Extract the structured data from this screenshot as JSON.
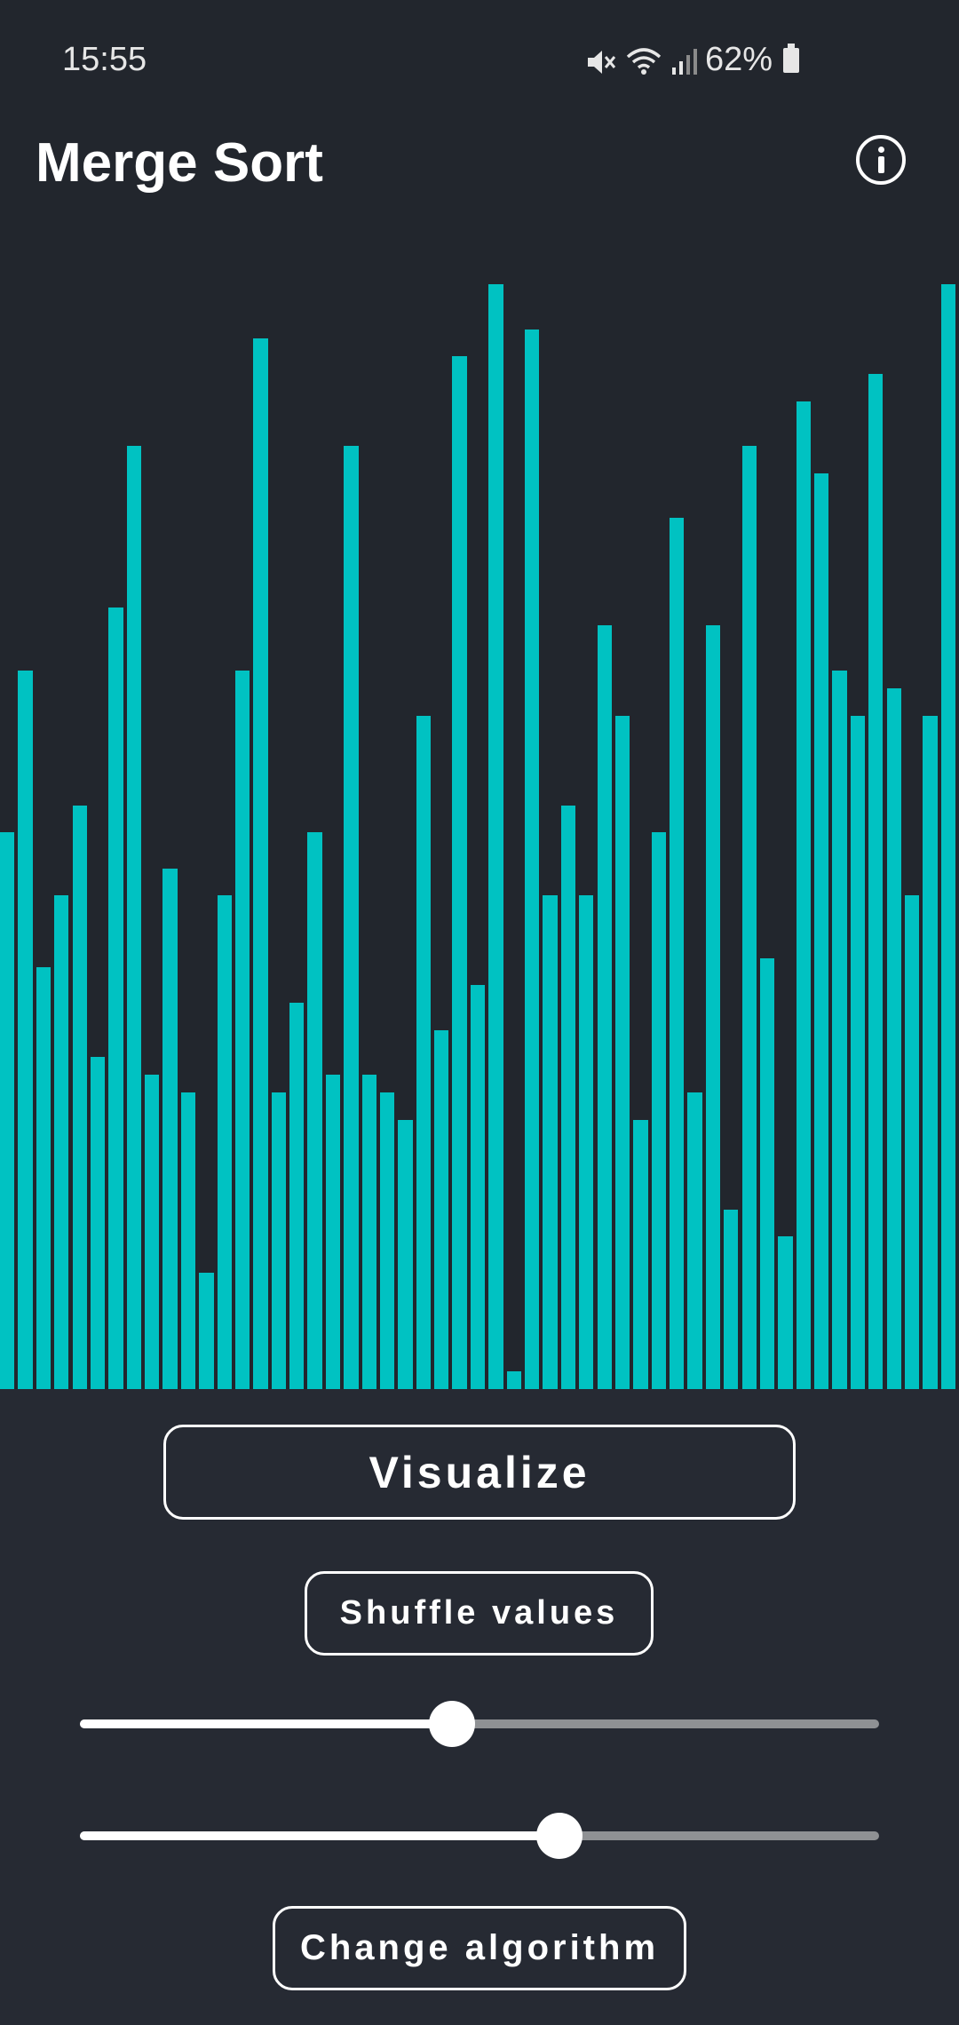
{
  "status_bar": {
    "time": "15:55",
    "battery": "62%",
    "icons": [
      "mute-icon",
      "wifi-icon",
      "signal-icon",
      "battery-icon"
    ]
  },
  "header": {
    "title": "Merge Sort",
    "info_icon": "info-icon"
  },
  "colors": {
    "bar": "#00c2c2",
    "background": "#262a33",
    "chart_background": "#22262d"
  },
  "chart_data": {
    "type": "bar",
    "values": [
      62,
      80,
      47,
      55,
      65,
      37,
      87,
      105,
      35,
      58,
      33,
      13,
      55,
      80,
      117,
      33,
      43,
      62,
      35,
      105,
      35,
      33,
      30,
      75,
      40,
      115,
      45,
      123,
      2,
      118,
      55,
      65,
      55,
      85,
      75,
      30,
      62,
      97,
      33,
      85,
      20,
      105,
      48,
      17,
      110,
      102,
      80,
      75,
      113,
      78,
      55,
      75,
      123
    ]
  },
  "controls": {
    "visualize_label": "Visualize",
    "shuffle_label": "Shuffle values",
    "change_algorithm_label": "Change algorithm",
    "speed_slider_value": 0.465,
    "size_slider_value": 0.6
  }
}
